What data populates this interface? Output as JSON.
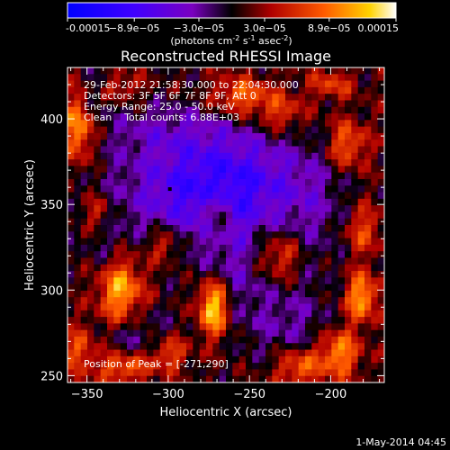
{
  "chart_data": {
    "type": "heatmap",
    "title": "Reconstructed RHESSI Image",
    "xlabel": "Heliocentric X (arcsec)",
    "ylabel": "Heliocentric Y (arcsec)",
    "xlim": [
      -362,
      -167
    ],
    "ylim": [
      246,
      430
    ],
    "x_ticks": [
      -350,
      -300,
      -250,
      -200
    ],
    "y_ticks": [
      250,
      300,
      350,
      400
    ],
    "colorbar": {
      "range": [
        -0.00015,
        0.00015
      ],
      "tick_values": [
        -0.00015,
        -8.9e-05,
        -3e-05,
        3e-05,
        8.9e-05,
        0.00015
      ],
      "tick_labels": [
        "-0.00015",
        "−8.9e−05",
        "−3.0e−05",
        "3.0e−05",
        "8.9e−05",
        "0.00015"
      ],
      "units_prefix": "(photons cm",
      "units_exp1": "-2",
      "units_mid": " s",
      "units_exp2": "-1",
      "units_mid2": " asec",
      "units_exp3": "-2",
      "units_suffix": ")"
    },
    "annotations": [
      "29-Feb-2012 21:58:30.000 to 22:04:30.000",
      "Detectors: 3F 5F 6F 7F 8F 9F, Att 0",
      "Energy Range: 25.0 - 50.0 keV",
      "Clean    Total counts: 6.88E+03"
    ],
    "peak_label": "Position of Peak = [-271,290]",
    "peak": {
      "x": -271,
      "y": 290
    },
    "marker": {
      "x": -299,
      "y": 359
    },
    "grid": false,
    "blobs": [
      {
        "x": -283,
        "y": 358,
        "sx": 34,
        "sy": 20,
        "a": -1.1
      },
      {
        "x": -250,
        "y": 365,
        "sx": 26,
        "sy": 20,
        "a": -0.6
      },
      {
        "x": -300,
        "y": 393,
        "sx": 32,
        "sy": 12,
        "a": -0.5
      },
      {
        "x": -260,
        "y": 310,
        "sx": 16,
        "sy": 22,
        "a": -0.55
      },
      {
        "x": -225,
        "y": 280,
        "sx": 18,
        "sy": 16,
        "a": -0.5
      },
      {
        "x": -318,
        "y": 268,
        "sx": 18,
        "sy": 14,
        "a": -0.55
      },
      {
        "x": -210,
        "y": 348,
        "sx": 14,
        "sy": 28,
        "a": -0.4
      },
      {
        "x": -338,
        "y": 322,
        "sx": 10,
        "sy": 18,
        "a": -0.35
      },
      {
        "x": -345,
        "y": 415,
        "sx": 8,
        "sy": 10,
        "a": -0.4
      },
      {
        "x": -272,
        "y": 290,
        "sx": 7,
        "sy": 12,
        "a": 1.75
      },
      {
        "x": -330,
        "y": 300,
        "sx": 10,
        "sy": 14,
        "a": 1.45
      },
      {
        "x": -355,
        "y": 395,
        "sx": 7,
        "sy": 14,
        "a": 1.3
      },
      {
        "x": -181,
        "y": 296,
        "sx": 7,
        "sy": 10,
        "a": 1.3
      },
      {
        "x": -327,
        "y": 255,
        "sx": 12,
        "sy": 7,
        "a": 1.2
      },
      {
        "x": -195,
        "y": 263,
        "sx": 9,
        "sy": 10,
        "a": 1.2
      },
      {
        "x": -255,
        "y": 413,
        "sx": 13,
        "sy": 8,
        "a": 1.0
      },
      {
        "x": -190,
        "y": 385,
        "sx": 9,
        "sy": 10,
        "a": 0.95
      },
      {
        "x": -220,
        "y": 255,
        "sx": 10,
        "sy": 8,
        "a": 1.0
      },
      {
        "x": -232,
        "y": 320,
        "sx": 10,
        "sy": 10,
        "a": 0.85
      },
      {
        "x": -300,
        "y": 263,
        "sx": 9,
        "sy": 8,
        "a": 1.0
      },
      {
        "x": -270,
        "y": 345,
        "sx": 6,
        "sy": 10,
        "a": 0.85
      },
      {
        "x": -302,
        "y": 327,
        "sx": 7,
        "sy": 7,
        "a": 0.75
      },
      {
        "x": -230,
        "y": 403,
        "sx": 10,
        "sy": 8,
        "a": 0.75
      },
      {
        "x": -180,
        "y": 335,
        "sx": 8,
        "sy": 10,
        "a": 0.75
      },
      {
        "x": -330,
        "y": 418,
        "sx": 10,
        "sy": 6,
        "a": 0.6
      },
      {
        "x": -200,
        "y": 420,
        "sx": 10,
        "sy": 6,
        "a": 0.7
      },
      {
        "x": -355,
        "y": 265,
        "sx": 8,
        "sy": 10,
        "a": 0.8
      },
      {
        "x": -343,
        "y": 345,
        "sx": 7,
        "sy": 8,
        "a": 0.7
      }
    ]
  },
  "footer": {
    "timestamp": "1-May-2014 04:45"
  }
}
